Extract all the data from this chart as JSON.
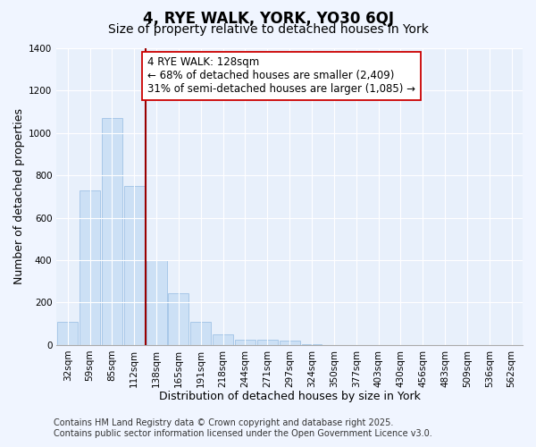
{
  "title": "4, RYE WALK, YORK, YO30 6QJ",
  "subtitle": "Size of property relative to detached houses in York",
  "xlabel": "Distribution of detached houses by size in York",
  "ylabel": "Number of detached properties",
  "categories": [
    "32sqm",
    "59sqm",
    "85sqm",
    "112sqm",
    "138sqm",
    "165sqm",
    "191sqm",
    "218sqm",
    "244sqm",
    "271sqm",
    "297sqm",
    "324sqm",
    "350sqm",
    "377sqm",
    "403sqm",
    "430sqm",
    "456sqm",
    "483sqm",
    "509sqm",
    "536sqm",
    "562sqm"
  ],
  "values": [
    110,
    730,
    1070,
    750,
    400,
    245,
    110,
    50,
    25,
    25,
    20,
    5,
    0,
    0,
    0,
    0,
    0,
    0,
    0,
    0,
    0
  ],
  "bar_color": "#cce0f5",
  "bar_edge_color": "#a8c8e8",
  "vline_color": "#990000",
  "annotation_line1": "4 RYE WALK: 128sqm",
  "annotation_line2": "← 68% of detached houses are smaller (2,409)",
  "annotation_line3": "31% of semi-detached houses are larger (1,085) →",
  "annotation_box_color": "#ffffff",
  "annotation_box_edge_color": "#cc0000",
  "ylim": [
    0,
    1400
  ],
  "yticks": [
    0,
    200,
    400,
    600,
    800,
    1000,
    1200,
    1400
  ],
  "footer_line1": "Contains HM Land Registry data © Crown copyright and database right 2025.",
  "footer_line2": "Contains public sector information licensed under the Open Government Licence v3.0.",
  "bg_color": "#f0f5ff",
  "plot_bg_color": "#e8f0fb",
  "grid_color": "#ffffff",
  "title_fontsize": 12,
  "subtitle_fontsize": 10,
  "axis_label_fontsize": 9,
  "tick_fontsize": 7.5,
  "annotation_fontsize": 8.5,
  "footer_fontsize": 7
}
